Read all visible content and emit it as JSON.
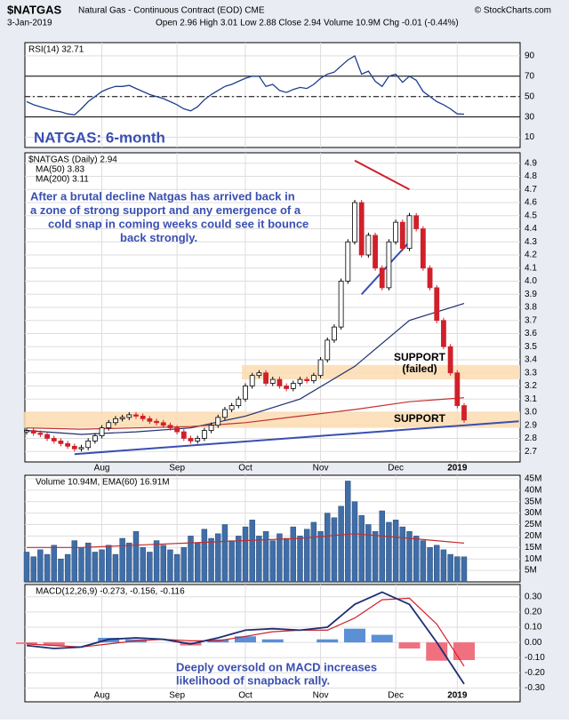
{
  "chart_data": {
    "type": "stock",
    "title": "$NATGAS",
    "subtitle": "Natural Gas - Continuous Contract (EOD) CME",
    "source": "© StockCharts.com",
    "date": "3-Jan-2019",
    "quote": "Open 2.96 High 3.01 Low 2.88 Close 2.94 Volume 10.9M Chg -0.01 (-0.44%)",
    "xticks": [
      {
        "value": 11,
        "label": "Aug"
      },
      {
        "value": 22,
        "label": "Sep"
      },
      {
        "value": 32,
        "label": "Oct"
      },
      {
        "value": 43,
        "label": "Nov"
      },
      {
        "value": 54,
        "label": "Dec"
      },
      {
        "value": 63,
        "label": "2019"
      }
    ],
    "rsi": {
      "label": "RSI(14) 32.71",
      "note": "NATGAS: 6-month",
      "ylim": [
        0,
        103
      ],
      "yticks": [
        10,
        30,
        50,
        70,
        90
      ],
      "levels": [
        70,
        50,
        30
      ],
      "color": "#1f3f8f",
      "values": [
        45,
        42,
        40,
        38,
        36,
        35,
        33,
        32,
        38,
        45,
        50,
        55,
        58,
        60,
        60,
        61,
        58,
        55,
        52,
        50,
        48,
        45,
        42,
        38,
        36,
        40,
        47,
        52,
        56,
        60,
        62,
        65,
        68,
        70,
        70,
        60,
        62,
        56,
        54,
        57,
        59,
        58,
        62,
        68,
        72,
        74,
        80,
        86,
        90,
        72,
        75,
        65,
        60,
        70,
        72,
        64,
        70,
        66,
        55,
        50,
        45,
        42,
        38,
        33,
        32.71
      ]
    },
    "price": {
      "label": "$NATGAS (Daily) 2.94",
      "ylim": [
        2.62,
        4.98
      ],
      "yticks": [
        {
          "value": 2.7,
          "label": "2.7"
        },
        {
          "value": 2.8,
          "label": "2.8"
        },
        {
          "value": 2.9,
          "label": "2.9"
        },
        {
          "value": 3,
          "label": "3.0"
        },
        {
          "value": 3.1,
          "label": "3.1"
        },
        {
          "value": 3.2,
          "label": "3.2"
        },
        {
          "value": 3.3,
          "label": "3.3"
        },
        {
          "value": 3.4,
          "label": "3.4"
        },
        {
          "value": 3.5,
          "label": "3.5"
        },
        {
          "value": 3.6,
          "label": "3.6"
        },
        {
          "value": 3.7,
          "label": "3.7"
        },
        {
          "value": 3.8,
          "label": "3.8"
        },
        {
          "value": 3.9,
          "label": "3.9"
        },
        {
          "value": 4,
          "label": "4.0"
        },
        {
          "value": 4.1,
          "label": "4.1"
        },
        {
          "value": 4.2,
          "label": "4.2"
        },
        {
          "value": 4.3,
          "label": "4.3"
        },
        {
          "value": 4.4,
          "label": "4.4"
        },
        {
          "value": 4.5,
          "label": "4.5"
        },
        {
          "value": 4.6,
          "label": "4.6"
        },
        {
          "value": 4.7,
          "label": "4.7"
        },
        {
          "value": 4.8,
          "label": "4.8"
        },
        {
          "value": 4.9,
          "label": "4.9"
        }
      ],
      "close": [
        2.86,
        2.84,
        2.83,
        2.8,
        2.78,
        2.76,
        2.74,
        2.72,
        2.73,
        2.78,
        2.82,
        2.88,
        2.92,
        2.95,
        2.96,
        2.98,
        2.97,
        2.95,
        2.93,
        2.92,
        2.9,
        2.88,
        2.85,
        2.8,
        2.78,
        2.8,
        2.86,
        2.9,
        2.96,
        3.02,
        3.05,
        3.1,
        3.2,
        3.28,
        3.3,
        3.22,
        3.25,
        3.2,
        3.18,
        3.22,
        3.25,
        3.24,
        3.28,
        3.4,
        3.55,
        3.65,
        4.0,
        4.3,
        4.6,
        4.2,
        4.35,
        4.1,
        3.95,
        4.3,
        4.45,
        4.25,
        4.5,
        4.4,
        4.1,
        3.95,
        3.7,
        3.5,
        3.3,
        3.05,
        2.94
      ],
      "up_color": "#000000",
      "down_color": "#d0202a",
      "ma": [
        {
          "name": "MA(50) 3.83",
          "color": "#1f2f70",
          "x": [
            0,
            8,
            16,
            24,
            32,
            40,
            48,
            56,
            64
          ],
          "values": [
            2.86,
            2.83,
            2.85,
            2.88,
            2.97,
            3.1,
            3.35,
            3.7,
            3.83
          ]
        },
        {
          "name": "MA(200) 3.11",
          "color": "#c03030",
          "x": [
            0,
            8,
            16,
            24,
            32,
            40,
            48,
            56,
            64
          ],
          "values": [
            2.88,
            2.87,
            2.88,
            2.89,
            2.92,
            2.97,
            3.02,
            3.08,
            3.11
          ]
        }
      ],
      "note": [
        "After a brutal decline Natgas has arrived back in",
        "a zone of strong support and any emergence of a",
        "cold snap in coming weeks could see it bounce",
        "back strongly."
      ],
      "bands": [
        {
          "lines": [
            "SUPPORT",
            "(failed)"
          ],
          "from": 32,
          "range": [
            3.25,
            3.36
          ]
        },
        {
          "lines": [
            "SUPPORT"
          ],
          "from": 0,
          "range": [
            2.88,
            3.0
          ]
        }
      ],
      "trendlines": [
        {
          "color": "#d0202a",
          "x": [
            48,
            56
          ],
          "values": [
            4.92,
            4.7
          ]
        },
        {
          "color": "#3a4fb0",
          "x": [
            49,
            56
          ],
          "values": [
            3.9,
            4.3
          ]
        },
        {
          "color": "#3a4fb0",
          "x": [
            7,
            72
          ],
          "values": [
            2.68,
            2.93
          ]
        }
      ]
    },
    "volume": {
      "label": "Volume 10.94M, EMA(60) 16.91M",
      "ylim": [
        0,
        46.5
      ],
      "color": "#3f6ea8",
      "ema_color": "#c03030",
      "yticks": [
        {
          "value": 5,
          "label": "5M"
        },
        {
          "value": 10,
          "label": "10M"
        },
        {
          "value": 15,
          "label": "15M"
        },
        {
          "value": 20,
          "label": "20M"
        },
        {
          "value": 25,
          "label": "25M"
        },
        {
          "value": 30,
          "label": "30M"
        },
        {
          "value": 35,
          "label": "35M"
        },
        {
          "value": 40,
          "label": "40M"
        },
        {
          "value": 45,
          "label": "45M"
        }
      ],
      "values": [
        13,
        11,
        14,
        12,
        16,
        10,
        12,
        18,
        15,
        17,
        13,
        14,
        16,
        12,
        19,
        17,
        22,
        15,
        13,
        18,
        16,
        14,
        12,
        15,
        20,
        17,
        23,
        19,
        21,
        25,
        18,
        20,
        24,
        27,
        20,
        22,
        18,
        21,
        19,
        24,
        20,
        23,
        26,
        22,
        30,
        28,
        33,
        44,
        35,
        29,
        25,
        22,
        31,
        26,
        27,
        24,
        22,
        20,
        18,
        15,
        16,
        14,
        12,
        11,
        10.94
      ],
      "ema_x": [
        0,
        8,
        16,
        24,
        32,
        40,
        48,
        56,
        64
      ],
      "ema": [
        15,
        15,
        16,
        17,
        18,
        19,
        21,
        19,
        16.91
      ]
    },
    "macd": {
      "label": "MACD(12,26,9) -0.273, -0.156, -0.116",
      "note": [
        "Deeply oversold on MACD increases",
        "likelihood  of  snapback  rally."
      ],
      "ylim": [
        -0.39,
        0.38
      ],
      "yticks": [
        {
          "value": -0.3,
          "label": "-0.30"
        },
        {
          "value": -0.2,
          "label": "-0.20"
        },
        {
          "value": -0.1,
          "label": "-0.10"
        },
        {
          "value": 0,
          "label": "0.00"
        },
        {
          "value": 0.1,
          "label": "0.10"
        },
        {
          "value": 0.2,
          "label": "0.20"
        },
        {
          "value": 0.3,
          "label": "0.30"
        }
      ],
      "x": [
        0,
        4,
        8,
        12,
        16,
        20,
        24,
        28,
        32,
        36,
        40,
        44,
        48,
        52,
        56,
        60,
        64
      ],
      "macd_color": "#1f2f70",
      "signal_color": "#d0202a",
      "hist_pos": "#5b8fd6",
      "hist_neg": "#f07080",
      "macd": [
        -0.02,
        -0.04,
        -0.03,
        0.02,
        0.03,
        0.02,
        -0.01,
        0.03,
        0.08,
        0.09,
        0.08,
        0.1,
        0.25,
        0.33,
        0.25,
        0,
        -0.273
      ],
      "signal": [
        -0.01,
        -0.02,
        -0.03,
        -0.01,
        0.01,
        0.02,
        0.01,
        0.01,
        0.04,
        0.07,
        0.08,
        0.08,
        0.16,
        0.28,
        0.29,
        0.12,
        -0.156
      ],
      "hist": [
        -0.01,
        -0.02,
        0,
        0.03,
        0.02,
        0,
        -0.02,
        0.02,
        0.04,
        0.02,
        0,
        0.02,
        0.09,
        0.05,
        -0.04,
        -0.12,
        -0.116
      ]
    }
  }
}
